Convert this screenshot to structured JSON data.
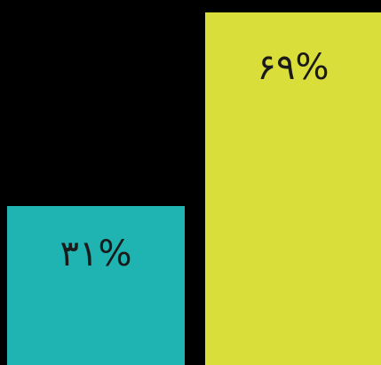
{
  "chart_data": {
    "type": "bar",
    "categories": [
      "",
      ""
    ],
    "values": [
      31,
      69
    ],
    "data_labels": [
      "٣١%",
      "۶٩%"
    ],
    "colors": [
      "#1FB3B1",
      "#D9DE3A"
    ],
    "background": "#000000",
    "label_color": "#1a1a1a",
    "ylim": [
      0,
      100
    ],
    "grid": false,
    "legend": "none"
  }
}
